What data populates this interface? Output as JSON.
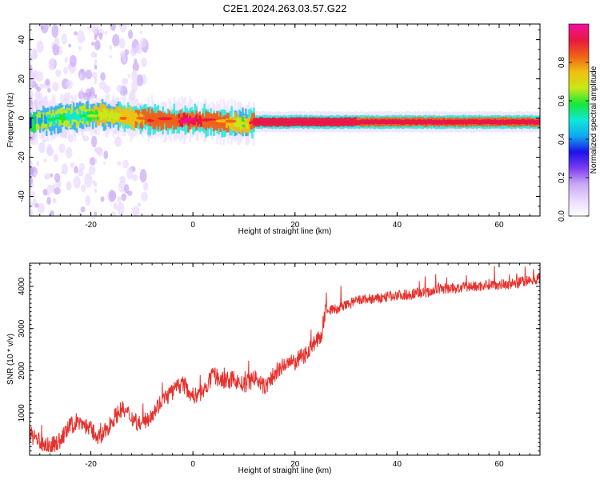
{
  "title": "C2E1.2024.263.03.57.G22",
  "colors": {
    "snr_line": "#e8302c",
    "frame": "#000000",
    "background": "#ffffff"
  },
  "chart_data": [
    {
      "type": "heatmap",
      "xlabel": "Height of straight line (km)",
      "ylabel": "Frequency (Hz)",
      "xlim": [
        -32,
        68
      ],
      "ylim": [
        -50,
        48
      ],
      "xticks": [
        -20,
        0,
        20,
        40,
        60
      ],
      "yticks": [
        -40,
        -20,
        0,
        20,
        40
      ],
      "colorbar": {
        "label": "Normalized spectral amplitude",
        "range": [
          0,
          1
        ],
        "ticks": [
          0.0,
          0.2,
          0.4,
          0.6,
          0.8
        ],
        "colormap": [
          "#ffffff",
          "#e9d9ff",
          "#c8a8f5",
          "#7b3cf0",
          "#1a12e8",
          "#10a8f0",
          "#10e8d8",
          "#18e838",
          "#c8e818",
          "#f0c010",
          "#f06018",
          "#e81840",
          "#f010a0"
        ]
      },
      "dominant_line": {
        "description": "main frequency trace",
        "x": [
          -32,
          -26,
          -22,
          -18,
          -12,
          -6,
          0,
          6,
          10,
          12,
          20,
          30,
          40,
          50,
          60,
          68
        ],
        "frequency": [
          -2,
          0,
          1,
          2,
          0,
          -1,
          -1,
          -2,
          -3,
          -2,
          -2,
          -2,
          -2,
          -2,
          -2,
          -2
        ],
        "amplitude": [
          0.35,
          0.55,
          0.5,
          0.65,
          0.75,
          0.85,
          0.9,
          0.8,
          0.6,
          0.95,
          0.95,
          0.95,
          0.92,
          0.92,
          0.92,
          0.9
        ]
      }
    },
    {
      "type": "line",
      "xlabel": "Height of straight line (km)",
      "ylabel": "SNR (10 * v/v)",
      "xlim": [
        -32,
        68
      ],
      "ylim": [
        0,
        4550
      ],
      "xticks": [
        -20,
        0,
        20,
        40,
        60
      ],
      "yticks": [
        1000,
        2000,
        3000,
        4000
      ],
      "series": [
        {
          "x": [
            -32,
            -30,
            -28,
            -26,
            -24,
            -22,
            -20,
            -18,
            -16,
            -14,
            -12,
            -10,
            -8,
            -6,
            -4,
            -2,
            0,
            2,
            4,
            6,
            8,
            10,
            12,
            14,
            16,
            18,
            20,
            22,
            24,
            25,
            26,
            28,
            30,
            32,
            34,
            36,
            38,
            40,
            42,
            44,
            46,
            48,
            50,
            52,
            54,
            56,
            58,
            60,
            62,
            64,
            66,
            68
          ],
          "values": [
            500,
            300,
            200,
            350,
            700,
            800,
            600,
            400,
            800,
            1100,
            900,
            700,
            1000,
            1300,
            1500,
            1700,
            1400,
            1500,
            1900,
            1750,
            1800,
            1650,
            1850,
            1600,
            1900,
            2150,
            2200,
            2400,
            2700,
            2750,
            3450,
            3450,
            3550,
            3650,
            3700,
            3700,
            3750,
            3800,
            3800,
            3850,
            3850,
            3950,
            3950,
            3950,
            4000,
            4000,
            4050,
            4050,
            4050,
            4100,
            4150,
            4200
          ]
        }
      ]
    }
  ]
}
